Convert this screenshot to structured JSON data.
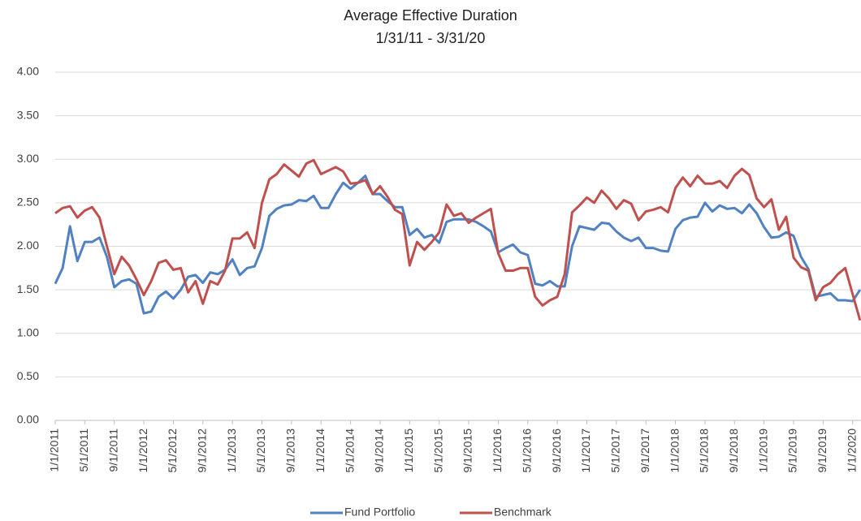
{
  "chart_data": {
    "type": "line",
    "title": "Average Effective Duration",
    "subtitle": "1/31/11  -  3/31/20",
    "categories": [
      "1/1/2011",
      null,
      null,
      null,
      "5/1/2011",
      null,
      null,
      null,
      "9/1/2011",
      null,
      null,
      null,
      "1/1/2012",
      null,
      null,
      null,
      "5/1/2012",
      null,
      null,
      null,
      "9/1/2012",
      null,
      null,
      null,
      "1/1/2013",
      null,
      null,
      null,
      "5/1/2013",
      null,
      null,
      null,
      "9/1/2013",
      null,
      null,
      null,
      "1/1/2014",
      null,
      null,
      null,
      "5/1/2014",
      null,
      null,
      null,
      "9/1/2014",
      null,
      null,
      null,
      "1/1/2015",
      null,
      null,
      null,
      "5/1/2015",
      null,
      null,
      null,
      "9/1/2015",
      null,
      null,
      null,
      "1/1/2016",
      null,
      null,
      null,
      "5/1/2016",
      null,
      null,
      null,
      "9/1/2016",
      null,
      null,
      null,
      "1/1/2017",
      null,
      null,
      null,
      "5/1/2017",
      null,
      null,
      null,
      "9/1/2017",
      null,
      null,
      null,
      "1/1/2018",
      null,
      null,
      null,
      "5/1/2018",
      null,
      null,
      null,
      "9/1/2018",
      null,
      null,
      null,
      "1/1/2019",
      null,
      null,
      null,
      "5/1/2019",
      null,
      null,
      null,
      "9/1/2019",
      null,
      null,
      null,
      "1/1/2020",
      null
    ],
    "series": [
      {
        "name": "Fund Portfolio",
        "color": "#4f81c3",
        "values": [
          1.57,
          1.75,
          2.23,
          1.83,
          2.05,
          2.05,
          2.1,
          1.88,
          1.53,
          1.6,
          1.62,
          1.57,
          1.23,
          1.25,
          1.42,
          1.48,
          1.4,
          1.5,
          1.65,
          1.67,
          1.58,
          1.7,
          1.68,
          1.73,
          1.85,
          1.67,
          1.75,
          1.77,
          1.98,
          2.35,
          2.43,
          2.47,
          2.48,
          2.53,
          2.52,
          2.58,
          2.44,
          2.44,
          2.6,
          2.73,
          2.66,
          2.73,
          2.81,
          2.6,
          2.6,
          2.52,
          2.45,
          2.45,
          2.13,
          2.2,
          2.1,
          2.13,
          2.04,
          2.28,
          2.31,
          2.31,
          2.31,
          2.28,
          2.23,
          2.17,
          1.93,
          1.98,
          2.02,
          1.93,
          1.9,
          1.57,
          1.55,
          1.6,
          1.54,
          1.54,
          2.0,
          2.23,
          2.21,
          2.19,
          2.27,
          2.26,
          2.17,
          2.1,
          2.06,
          2.1,
          1.98,
          1.98,
          1.95,
          1.94,
          2.2,
          2.3,
          2.33,
          2.34,
          2.5,
          2.4,
          2.47,
          2.43,
          2.44,
          2.38,
          2.48,
          2.38,
          2.22,
          2.1,
          2.11,
          2.16,
          2.12,
          1.88,
          1.74,
          1.42,
          1.44,
          1.46,
          1.38,
          1.38,
          1.37,
          1.5
        ]
      },
      {
        "name": "Benchmark",
        "color": "#c0504d",
        "values": [
          2.38,
          2.44,
          2.46,
          2.33,
          2.41,
          2.45,
          2.33,
          2.0,
          1.68,
          1.88,
          1.78,
          1.62,
          1.44,
          1.6,
          1.81,
          1.84,
          1.73,
          1.75,
          1.47,
          1.6,
          1.34,
          1.6,
          1.56,
          1.72,
          2.09,
          2.09,
          2.16,
          1.98,
          2.5,
          2.77,
          2.83,
          2.94,
          2.87,
          2.8,
          2.95,
          2.99,
          2.83,
          2.87,
          2.91,
          2.86,
          2.72,
          2.73,
          2.76,
          2.6,
          2.69,
          2.57,
          2.42,
          2.37,
          1.78,
          2.05,
          1.96,
          2.05,
          2.16,
          2.48,
          2.35,
          2.38,
          2.27,
          2.33,
          2.38,
          2.43,
          1.92,
          1.72,
          1.72,
          1.75,
          1.75,
          1.42,
          1.32,
          1.38,
          1.42,
          1.68,
          2.39,
          2.47,
          2.56,
          2.5,
          2.64,
          2.55,
          2.43,
          2.53,
          2.49,
          2.3,
          2.4,
          2.42,
          2.45,
          2.39,
          2.67,
          2.79,
          2.69,
          2.81,
          2.72,
          2.72,
          2.75,
          2.67,
          2.81,
          2.89,
          2.82,
          2.55,
          2.45,
          2.54,
          2.19,
          2.34,
          1.87,
          1.76,
          1.72,
          1.38,
          1.53,
          1.58,
          1.68,
          1.75,
          1.45,
          1.15
        ]
      }
    ],
    "ylim": [
      0,
      4
    ],
    "yticks": [
      {
        "value": 0,
        "label": "0.00"
      },
      {
        "value": 0.5,
        "label": "0.50"
      },
      {
        "value": 1,
        "label": "1.00"
      },
      {
        "value": 1.5,
        "label": "1.50"
      },
      {
        "value": 2,
        "label": "2.00"
      },
      {
        "value": 2.5,
        "label": "2.50"
      },
      {
        "value": 3,
        "label": "3.00"
      },
      {
        "value": 3.5,
        "label": "3.50"
      },
      {
        "value": 4,
        "label": "4.00"
      }
    ],
    "grid": true,
    "legend": "bottom"
  }
}
